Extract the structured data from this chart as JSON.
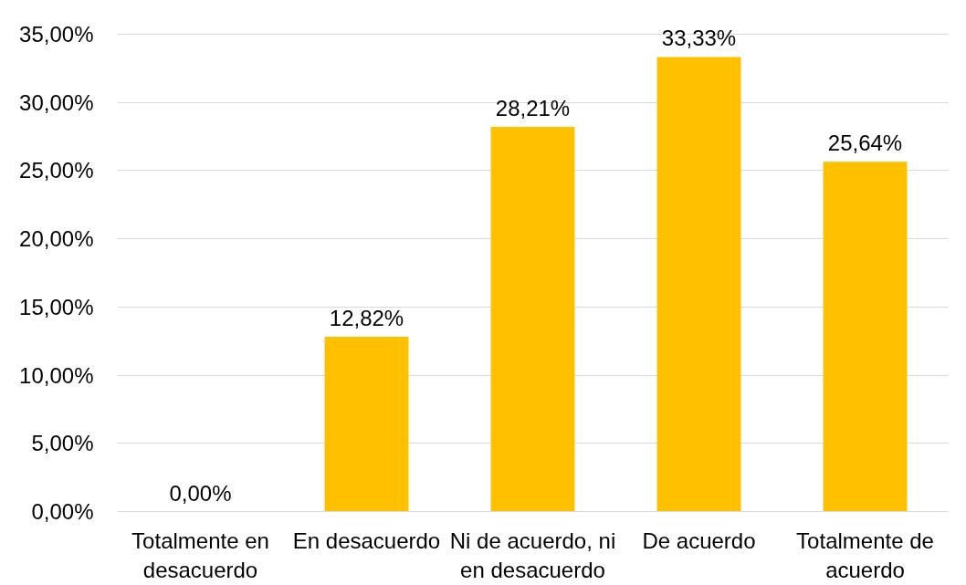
{
  "chart_data": {
    "type": "bar",
    "categories": [
      "Totalmente en desacuerdo",
      "En desacuerdo",
      "Ni de acuerdo, ni en desacuerdo",
      "De acuerdo",
      "Totalmente de acuerdo"
    ],
    "values": [
      0,
      12.82,
      28.21,
      33.33,
      25.64
    ],
    "value_labels": [
      "0,00%",
      "12,82%",
      "28,21%",
      "33,33%",
      "25,64%"
    ],
    "color": "#ffc000",
    "ylim": [
      0,
      35
    ],
    "yticks": [
      {
        "value": 0,
        "label": "0,00%"
      },
      {
        "value": 5,
        "label": "5,00%"
      },
      {
        "value": 10,
        "label": "10,00%"
      },
      {
        "value": 15,
        "label": "15,00%"
      },
      {
        "value": 20,
        "label": "20,00%"
      },
      {
        "value": 25,
        "label": "25,00%"
      },
      {
        "value": 30,
        "label": "30,00%"
      },
      {
        "value": 35,
        "label": "35,00%"
      }
    ],
    "grid": "y"
  }
}
